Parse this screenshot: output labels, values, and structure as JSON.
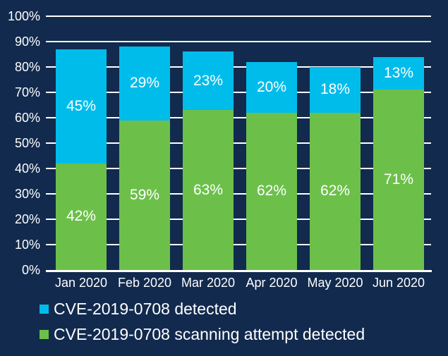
{
  "chart_data": {
    "type": "bar",
    "stacked": true,
    "categories": [
      "Jan 2020",
      "Feb 2020",
      "Mar 2020",
      "Apr 2020",
      "May 2020",
      "Jun 2020"
    ],
    "series": [
      {
        "name": "CVE-2019-0708 detected",
        "color": "#00bceb",
        "values": [
          45,
          29,
          23,
          20,
          18,
          13
        ]
      },
      {
        "name": "CVE-2019-0708 scanning attempt detected",
        "color": "#6cc04a",
        "values": [
          42,
          59,
          63,
          62,
          62,
          71
        ]
      }
    ],
    "value_label_format": "percent",
    "ylim": [
      0,
      100
    ],
    "ytick_step": 10,
    "ytick_labels": [
      "0%",
      "10%",
      "20%",
      "30%",
      "40%",
      "50%",
      "60%",
      "70%",
      "80%",
      "90%",
      "100%"
    ],
    "grid": true,
    "legend_position": "bottom-left",
    "colors": {
      "background": "#122a4e",
      "grid": "#ffffff",
      "text": "#ffffff"
    }
  }
}
